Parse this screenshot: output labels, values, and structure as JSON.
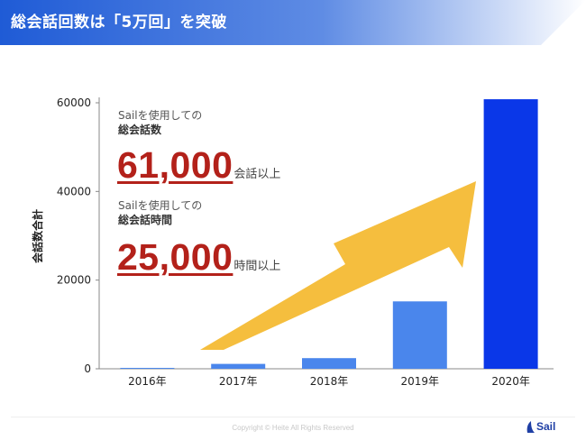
{
  "header": {
    "title": "総会話回数は「5万回」を突破",
    "colors": {
      "start": "#1f5bd6",
      "end": "#ffffff"
    }
  },
  "callouts": [
    {
      "line1": "Sailを使用しての",
      "line2": "総会話数",
      "number": "61,000",
      "suffix": "会話以上"
    },
    {
      "line1": "Sailを使用しての",
      "line2": "総会話時間",
      "number": "25,000",
      "suffix": "時間以上"
    }
  ],
  "chart_data": {
    "type": "bar",
    "categories": [
      "2016年",
      "2017年",
      "2018年",
      "2019年",
      "2020年"
    ],
    "values": [
      200,
      1100,
      2400,
      15200,
      60800
    ],
    "ylabel": "会話数合計",
    "xlabel": "",
    "ylim": [
      0,
      60000
    ],
    "yticks": [
      0,
      20000,
      40000,
      60000
    ],
    "ytick_labels": [
      "0",
      "20000",
      "40000",
      "60000"
    ],
    "grid": false,
    "colors": {
      "bars": [
        "#4a86ec",
        "#4a86ec",
        "#4a86ec",
        "#4a86ec",
        "#0a37e8"
      ],
      "arrow": "#f5be3e"
    }
  },
  "footer": {
    "copyright": "Copyright © Heite All Rights Reserved",
    "logo_text": "Sail",
    "logo_icon": "sail-logo-icon"
  }
}
